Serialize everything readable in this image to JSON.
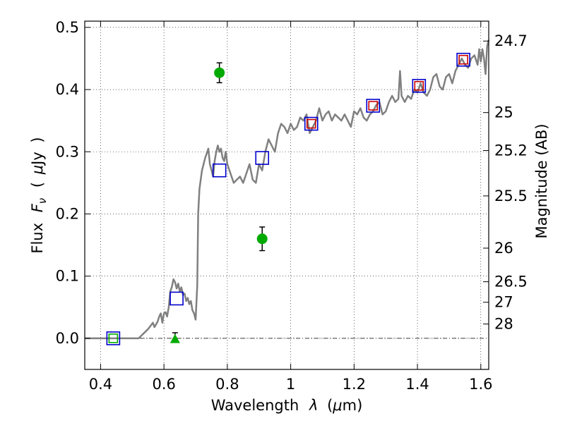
{
  "chart_data": {
    "type": "scatter",
    "xlabel_text": "Wavelength",
    "xlabel_symbol": "λ",
    "xlabel_unit_open": "(",
    "xlabel_unit_mu": "μ",
    "xlabel_unit_rest": "m)",
    "ylabel_text": "Flux",
    "ylabel_symbol": "F",
    "ylabel_sub": "ν",
    "ylabel_unit_open": "(",
    "ylabel_unit_mu": "μ",
    "ylabel_unit_rest": "Jy",
    "ylabel_unit_close": ")",
    "y2label": "Magnitude (AB)",
    "xlim": [
      0.35,
      1.625
    ],
    "ylim": [
      -0.05,
      0.51
    ],
    "grid": true,
    "x_ticks": [
      0.4,
      0.6,
      0.8,
      1.0,
      1.2,
      1.4,
      1.6
    ],
    "x_tick_labels": [
      "0.4",
      "0.6",
      "0.8",
      "1",
      "1.2",
      "1.4",
      "1.6"
    ],
    "y_ticks": [
      0.0,
      0.1,
      0.2,
      0.3,
      0.4,
      0.5
    ],
    "y_tick_labels": [
      "0.0",
      "0.1",
      "0.2",
      "0.3",
      "0.4",
      "0.5"
    ],
    "y2_ticks": [
      {
        "label": "24.7",
        "flux": 0.478
      },
      {
        "label": "25",
        "flux": 0.363
      },
      {
        "label": "25.2",
        "flux": 0.302
      },
      {
        "label": "25.5",
        "flux": 0.229
      },
      {
        "label": "26",
        "flux": 0.145
      },
      {
        "label": "26.5",
        "flux": 0.091
      },
      {
        "label": "27",
        "flux": 0.058
      },
      {
        "label": "28",
        "flux": 0.023
      }
    ],
    "series": [
      {
        "kind": "line",
        "color": "#808080",
        "x": [
          0.35,
          0.52,
          0.55,
          0.565,
          0.57,
          0.58,
          0.585,
          0.59,
          0.595,
          0.6,
          0.605,
          0.61,
          0.615,
          0.62,
          0.625,
          0.63,
          0.635,
          0.64,
          0.645,
          0.65,
          0.655,
          0.66,
          0.665,
          0.67,
          0.675,
          0.68,
          0.685,
          0.69,
          0.695,
          0.7,
          0.705,
          0.708,
          0.712,
          0.72,
          0.73,
          0.74,
          0.745,
          0.75,
          0.755,
          0.76,
          0.765,
          0.77,
          0.775,
          0.78,
          0.785,
          0.79,
          0.795,
          0.8,
          0.81,
          0.82,
          0.83,
          0.84,
          0.85,
          0.86,
          0.87,
          0.88,
          0.89,
          0.9,
          0.91,
          0.92,
          0.93,
          0.94,
          0.95,
          0.96,
          0.97,
          0.98,
          0.99,
          1.0,
          1.01,
          1.02,
          1.03,
          1.04,
          1.05,
          1.06,
          1.07,
          1.08,
          1.09,
          1.1,
          1.11,
          1.12,
          1.13,
          1.14,
          1.15,
          1.16,
          1.17,
          1.18,
          1.19,
          1.2,
          1.21,
          1.22,
          1.23,
          1.24,
          1.25,
          1.26,
          1.27,
          1.28,
          1.29,
          1.3,
          1.31,
          1.32,
          1.33,
          1.34,
          1.345,
          1.35,
          1.36,
          1.37,
          1.38,
          1.39,
          1.4,
          1.41,
          1.42,
          1.43,
          1.44,
          1.45,
          1.46,
          1.47,
          1.48,
          1.49,
          1.5,
          1.51,
          1.52,
          1.53,
          1.54,
          1.55,
          1.56,
          1.57,
          1.58,
          1.59,
          1.595,
          1.6,
          1.605,
          1.61,
          1.615,
          1.62,
          1.625
        ],
        "y": [
          0.0,
          0.0,
          0.015,
          0.025,
          0.018,
          0.027,
          0.035,
          0.04,
          0.025,
          0.04,
          0.042,
          0.035,
          0.05,
          0.075,
          0.083,
          0.095,
          0.09,
          0.08,
          0.088,
          0.075,
          0.082,
          0.07,
          0.072,
          0.06,
          0.065,
          0.055,
          0.06,
          0.045,
          0.04,
          0.03,
          0.085,
          0.2,
          0.24,
          0.27,
          0.29,
          0.305,
          0.28,
          0.27,
          0.26,
          0.285,
          0.3,
          0.31,
          0.3,
          0.305,
          0.29,
          0.285,
          0.3,
          0.28,
          0.265,
          0.25,
          0.255,
          0.26,
          0.25,
          0.265,
          0.28,
          0.255,
          0.25,
          0.28,
          0.27,
          0.3,
          0.32,
          0.31,
          0.3,
          0.33,
          0.345,
          0.34,
          0.33,
          0.345,
          0.335,
          0.34,
          0.355,
          0.35,
          0.36,
          0.33,
          0.34,
          0.35,
          0.37,
          0.35,
          0.36,
          0.365,
          0.35,
          0.36,
          0.355,
          0.35,
          0.36,
          0.35,
          0.34,
          0.365,
          0.36,
          0.37,
          0.355,
          0.35,
          0.36,
          0.365,
          0.375,
          0.38,
          0.36,
          0.365,
          0.38,
          0.39,
          0.38,
          0.385,
          0.43,
          0.39,
          0.38,
          0.39,
          0.385,
          0.4,
          0.395,
          0.41,
          0.395,
          0.39,
          0.4,
          0.42,
          0.425,
          0.405,
          0.4,
          0.42,
          0.425,
          0.41,
          0.43,
          0.44,
          0.45,
          0.44,
          0.435,
          0.45,
          0.455,
          0.44,
          0.465,
          0.445,
          0.465,
          0.45,
          0.425,
          0.47,
          0.48
        ]
      },
      {
        "kind": "square-open",
        "color": "#0000cc",
        "size": "large",
        "x": [
          0.44,
          0.64,
          0.775,
          0.91,
          1.065,
          1.26,
          1.405,
          1.545
        ],
        "y": [
          0.0,
          0.064,
          0.27,
          0.29,
          0.345,
          0.374,
          0.406,
          0.448
        ]
      },
      {
        "kind": "square-open",
        "color": "#cc0000",
        "size": "small",
        "x": [
          1.065,
          1.26,
          1.405,
          1.545
        ],
        "y": [
          0.345,
          0.374,
          0.406,
          0.448
        ]
      },
      {
        "kind": "square-open",
        "color": "#00aa00",
        "size": "small",
        "x": [
          0.44
        ],
        "y": [
          0.0
        ]
      },
      {
        "kind": "circle",
        "color": "#00aa00",
        "x": [
          0.775,
          0.91
        ],
        "y": [
          0.427,
          0.16
        ],
        "err": [
          0.016,
          0.019
        ]
      },
      {
        "kind": "triangle",
        "color": "#00aa00",
        "x": [
          0.635
        ],
        "y": [
          -0.002
        ],
        "err_x": [
          0.635
        ],
        "err_y": [
          0.002
        ],
        "err": [
          0.007
        ]
      }
    ],
    "hline_dashdot": 0.0
  }
}
